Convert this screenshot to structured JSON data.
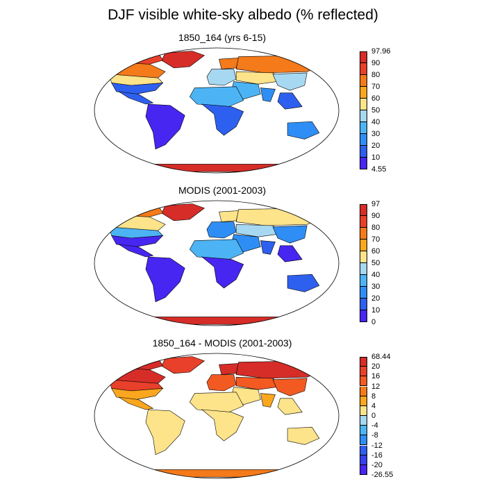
{
  "page": {
    "title": "DJF visible white-sky albedo (% reflected)"
  },
  "panels": [
    {
      "title": "1850_164 (yrs 6-15)",
      "colorbar": {
        "labels": [
          "97.96",
          "90",
          "80",
          "70",
          "60",
          "50",
          "40",
          "30",
          "20",
          "10",
          "4.55"
        ],
        "colors": [
          "#d62d28",
          "#e8402a",
          "#f47a1a",
          "#faa71f",
          "#fde38a",
          "#a7d8f1",
          "#4cb4f4",
          "#2f8ef5",
          "#2e60ef",
          "#4726f2"
        ]
      },
      "min": "4.55",
      "max": "97.96"
    },
    {
      "title": "MODIS (2001-2003)",
      "colorbar": {
        "labels": [
          "97",
          "90",
          "80",
          "70",
          "60",
          "50",
          "40",
          "30",
          "20",
          "10",
          "0"
        ],
        "colors": [
          "#d62d28",
          "#e8402a",
          "#f47a1a",
          "#faa71f",
          "#fde38a",
          "#a7d8f1",
          "#4cb4f4",
          "#2f8ef5",
          "#2e60ef",
          "#4726f2"
        ]
      },
      "min": "0",
      "max": "97"
    },
    {
      "title": "1850_164 - MODIS (2001-2003)",
      "colorbar": {
        "labels": [
          "68.44",
          "20",
          "16",
          "12",
          "8",
          "4",
          "0",
          "-4",
          "-8",
          "-12",
          "-16",
          "-20",
          "-26.55"
        ],
        "colors": [
          "#d62d28",
          "#e8402a",
          "#f25a22",
          "#f47a1a",
          "#faa71f",
          "#fde38a",
          "#a7d8f1",
          "#4cb4f4",
          "#2f8ef5",
          "#2e60ef",
          "#3740f0",
          "#4726f2"
        ]
      },
      "min": "-26.55",
      "max": "68.44"
    }
  ],
  "chart_data": [
    {
      "type": "heatmap",
      "title": "1850_164 (yrs 6-15)",
      "projection": "Robinson global",
      "value_range": [
        4.55,
        97.96
      ],
      "levels": [
        10,
        20,
        30,
        40,
        50,
        60,
        70,
        80,
        90
      ],
      "regions": {
        "greenland": 92,
        "arctic_canada": 85,
        "canada": 75,
        "usa_north": 55,
        "usa_south": 15,
        "mexico_central_america": 12,
        "south_america": 8,
        "europe": 40,
        "scandinavia": 75,
        "siberia": 78,
        "central_asia": 55,
        "middle_east": 30,
        "sahara": 33,
        "africa_south": 15,
        "india": 22,
        "southeast_asia": 10,
        "china": 40,
        "australia": 20,
        "antarctica": 95
      }
    },
    {
      "type": "heatmap",
      "title": "MODIS (2001-2003)",
      "projection": "Robinson global",
      "value_range": [
        0,
        97
      ],
      "levels": [
        10,
        20,
        30,
        40,
        50,
        60,
        70,
        80,
        90
      ],
      "regions": {
        "greenland": 90,
        "arctic_canada": 70,
        "canada": 55,
        "usa_north": 35,
        "usa_south": 8,
        "mexico_central_america": 6,
        "south_america": 5,
        "europe": 25,
        "scandinavia": 50,
        "siberia": 50,
        "central_asia": 40,
        "middle_east": 25,
        "sahara": 30,
        "africa_south": 8,
        "india": 15,
        "southeast_asia": 6,
        "china": 25,
        "australia": 15,
        "antarctica": 95
      }
    },
    {
      "type": "heatmap",
      "title": "1850_164 - MODIS (2001-2003)",
      "projection": "Robinson global",
      "value_range": [
        -26.55,
        68.44
      ],
      "levels": [
        -20,
        -16,
        -12,
        -8,
        -4,
        0,
        4,
        8,
        12,
        16,
        20
      ],
      "regions": {
        "greenland": 18,
        "arctic_canada": 21,
        "canada": 21,
        "usa_north": 18,
        "usa_south": 5,
        "mexico_central_america": 4,
        "south_america": 2,
        "europe": 14,
        "scandinavia": 22,
        "siberia": 22,
        "central_asia": 15,
        "middle_east": 3,
        "sahara": 3,
        "africa_south": 3,
        "india": 5,
        "southeast_asia": 2,
        "china": 14,
        "australia": 3,
        "antarctica": 10
      }
    }
  ]
}
